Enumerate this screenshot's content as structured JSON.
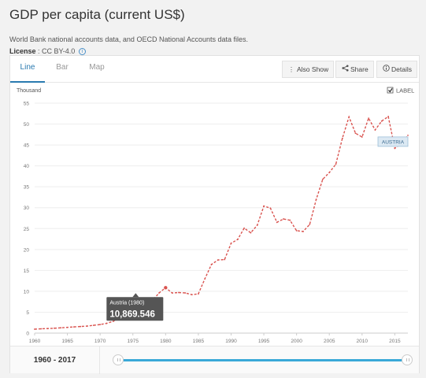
{
  "header": {
    "title": "GDP per capita (current US$)",
    "subtitle": "World Bank national accounts data, and OECD National Accounts data files.",
    "license_label": "License",
    "license_value": " : CC BY-4.0"
  },
  "tabs": [
    {
      "label": "Line",
      "active": true
    },
    {
      "label": "Bar",
      "active": false
    },
    {
      "label": "Map",
      "active": false
    }
  ],
  "toolbar": {
    "also_show": "Also Show",
    "share": "Share",
    "details": "Details"
  },
  "label_toggle": {
    "label": "LABEL",
    "checked": true
  },
  "tooltip": {
    "title": "Austria (1980)",
    "value": "10,869.546"
  },
  "series_label": "AUSTRIA",
  "footer": {
    "range": "1960 - 2017"
  },
  "colors": {
    "line": "#d9534f",
    "accent": "#2a7ab0",
    "slider": "#3aa9d8"
  },
  "chart_data": {
    "type": "line",
    "ylabel": "Thousand",
    "ylim": [
      0,
      55
    ],
    "yticks": [
      0,
      5,
      10,
      15,
      20,
      25,
      30,
      35,
      40,
      45,
      50,
      55
    ],
    "xticks": [
      1960,
      1965,
      1970,
      1975,
      1980,
      1985,
      1990,
      1995,
      2000,
      2005,
      2010,
      2015
    ],
    "xlim": [
      1960,
      2017
    ],
    "line_style": "dashed",
    "series": [
      {
        "name": "AUSTRIA",
        "x": [
          1960,
          1961,
          1962,
          1963,
          1964,
          1965,
          1966,
          1967,
          1968,
          1969,
          1970,
          1971,
          1972,
          1973,
          1974,
          1975,
          1976,
          1977,
          1978,
          1979,
          1980,
          1981,
          1982,
          1983,
          1984,
          1985,
          1986,
          1987,
          1988,
          1989,
          1990,
          1991,
          1992,
          1993,
          1994,
          1995,
          1996,
          1997,
          1998,
          1999,
          2000,
          2001,
          2002,
          2003,
          2004,
          2005,
          2006,
          2007,
          2008,
          2009,
          2010,
          2011,
          2012,
          2013,
          2014,
          2015,
          2016,
          2017
        ],
        "values": [
          0.94,
          1.03,
          1.09,
          1.17,
          1.27,
          1.37,
          1.49,
          1.58,
          1.68,
          1.86,
          2.05,
          2.34,
          2.83,
          3.72,
          4.48,
          5.0,
          5.5,
          6.5,
          7.8,
          9.6,
          10.87,
          9.6,
          9.7,
          9.6,
          9.2,
          9.4,
          13.0,
          16.4,
          17.5,
          17.6,
          21.5,
          22.4,
          25.1,
          24.0,
          25.8,
          30.4,
          29.9,
          26.5,
          27.3,
          27.0,
          24.5,
          24.3,
          26.0,
          32.0,
          36.8,
          38.4,
          40.4,
          46.6,
          51.7,
          47.8,
          46.9,
          51.4,
          48.6,
          50.7,
          51.8,
          44.2,
          45.3,
          47.3
        ]
      }
    ]
  }
}
